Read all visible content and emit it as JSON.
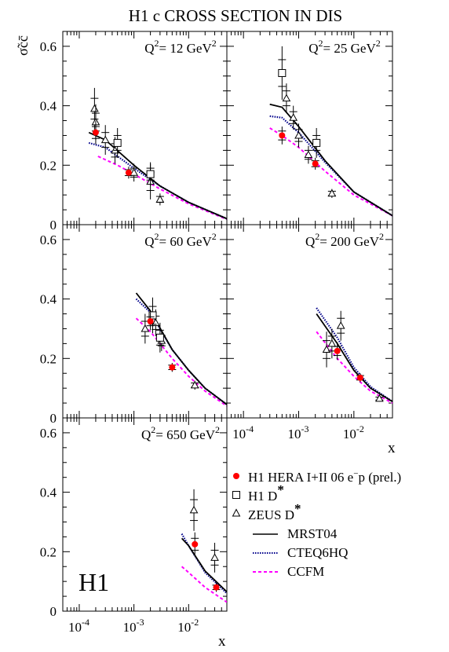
{
  "chart_data": {
    "type": "scatter",
    "title": "H1 c  CROSS SECTION IN DIS",
    "ylabel": "σ̃cc̄",
    "xlabel": "x",
    "xscale": "log",
    "xlim": [
      5e-05,
      0.05
    ],
    "ylim": [
      0,
      0.65
    ],
    "yticks": [
      0,
      0.2,
      0.4,
      0.6
    ],
    "xticks": [
      {
        "value": 0.0001,
        "base": "10",
        "exp": "-4"
      },
      {
        "value": 0.001,
        "base": "10",
        "exp": "-3"
      },
      {
        "value": 0.01,
        "base": "10",
        "exp": "-2"
      }
    ],
    "logo": "H1",
    "legend": {
      "h1_hera": "H1 HERA I+II 06 e",
      "h1_hera_sup": "−",
      "h1_hera_tail": "p (prel.)",
      "h1_dstar": "H1 D",
      "zeus_dstar": "ZEUS D",
      "star": "*",
      "mrst": "MRST04",
      "cteq": "CTEQ6HQ",
      "ccfm": "CCFM"
    },
    "colors": {
      "h1_hera": "#ff0000",
      "mrst": "#000000",
      "cteq": "#00008b",
      "ccfm": "#ff00ff"
    },
    "panels": [
      {
        "label_prefix": "Q",
        "label_sup": "2",
        "label_mid": "= 12 GeV",
        "label_sup2": "2",
        "h1_hera": [
          {
            "x": 0.0002,
            "y": 0.31,
            "err": 0.04
          },
          {
            "x": 0.0008,
            "y": 0.175,
            "err": 0.02
          }
        ],
        "h1_dstar": [
          {
            "x": 0.0005,
            "y": 0.275,
            "err": 0.05
          },
          {
            "x": 0.002,
            "y": 0.17,
            "err": 0.04
          }
        ],
        "zeus_dstar": [
          {
            "x": 0.00019,
            "y": 0.39,
            "err": 0.07
          },
          {
            "x": 0.0002,
            "y": 0.345,
            "err": 0.06
          },
          {
            "x": 0.0003,
            "y": 0.285,
            "err": 0.05
          },
          {
            "x": 0.00045,
            "y": 0.25,
            "err": 0.045
          },
          {
            "x": 0.001,
            "y": 0.175,
            "err": 0.03
          },
          {
            "x": 0.002,
            "y": 0.145,
            "err": 0.06
          },
          {
            "x": 0.003,
            "y": 0.085,
            "err": 0.02
          }
        ],
        "mrst": [
          [
            0.00015,
            0.31
          ],
          [
            0.0003,
            0.285
          ],
          [
            0.001,
            0.2
          ],
          [
            0.003,
            0.13
          ],
          [
            0.01,
            0.075
          ],
          [
            0.05,
            0.02
          ]
        ],
        "cteq": [
          [
            0.00015,
            0.275
          ],
          [
            0.0003,
            0.26
          ],
          [
            0.001,
            0.19
          ],
          [
            0.003,
            0.13
          ],
          [
            0.01,
            0.075
          ],
          [
            0.05,
            0.02
          ]
        ],
        "ccfm": [
          [
            0.00022,
            0.23
          ],
          [
            0.0005,
            0.2
          ],
          [
            0.001,
            0.17
          ],
          [
            0.003,
            0.12
          ],
          [
            0.01,
            0.07
          ],
          [
            0.05,
            0.018
          ]
        ]
      },
      {
        "label_prefix": "Q",
        "label_sup": "2",
        "label_mid": "= 25 GeV",
        "label_sup2": "2",
        "h1_hera": [
          {
            "x": 0.0005,
            "y": 0.3,
            "err": 0.03
          },
          {
            "x": 0.002,
            "y": 0.205,
            "err": 0.02
          }
        ],
        "h1_dstar": [
          {
            "x": 0.0005,
            "y": 0.51,
            "err": 0.09
          },
          {
            "x": 0.0021,
            "y": 0.275,
            "err": 0.05
          }
        ],
        "zeus_dstar": [
          {
            "x": 0.0006,
            "y": 0.425,
            "err": 0.05
          },
          {
            "x": 0.0008,
            "y": 0.36,
            "err": 0.04
          },
          {
            "x": 0.001,
            "y": 0.3,
            "err": 0.04
          },
          {
            "x": 0.0015,
            "y": 0.235,
            "err": 0.03
          },
          {
            "x": 0.004,
            "y": 0.105,
            "err": 0.015
          }
        ],
        "mrst": [
          [
            0.0003,
            0.405
          ],
          [
            0.0005,
            0.395
          ],
          [
            0.001,
            0.33
          ],
          [
            0.003,
            0.215
          ],
          [
            0.01,
            0.11
          ],
          [
            0.05,
            0.03
          ]
        ],
        "cteq": [
          [
            0.0003,
            0.365
          ],
          [
            0.0005,
            0.36
          ],
          [
            0.001,
            0.31
          ],
          [
            0.003,
            0.21
          ],
          [
            0.01,
            0.11
          ],
          [
            0.05,
            0.03
          ]
        ],
        "ccfm": [
          [
            0.0003,
            0.325
          ],
          [
            0.0005,
            0.3
          ],
          [
            0.001,
            0.26
          ],
          [
            0.003,
            0.18
          ],
          [
            0.01,
            0.1
          ],
          [
            0.05,
            0.03
          ]
        ]
      },
      {
        "label_prefix": "Q",
        "label_sup": "2",
        "label_mid": "= 60 GeV",
        "label_sup2": "2",
        "h1_hera": [
          {
            "x": 0.002,
            "y": 0.325,
            "err": 0.03
          },
          {
            "x": 0.005,
            "y": 0.17,
            "err": 0.015
          }
        ],
        "h1_dstar": [
          {
            "x": 0.0022,
            "y": 0.345,
            "err": 0.06
          },
          {
            "x": 0.003,
            "y": 0.27,
            "err": 0.05
          }
        ],
        "zeus_dstar": [
          {
            "x": 0.0016,
            "y": 0.3,
            "err": 0.05
          },
          {
            "x": 0.0025,
            "y": 0.32,
            "err": 0.045
          },
          {
            "x": 0.0032,
            "y": 0.26,
            "err": 0.035
          },
          {
            "x": 0.013,
            "y": 0.11,
            "err": 0.015
          }
        ],
        "mrst": [
          [
            0.0011,
            0.42
          ],
          [
            0.002,
            0.36
          ],
          [
            0.005,
            0.23
          ],
          [
            0.01,
            0.16
          ],
          [
            0.02,
            0.1
          ],
          [
            0.05,
            0.045
          ]
        ],
        "cteq": [
          [
            0.0011,
            0.4
          ],
          [
            0.002,
            0.355
          ],
          [
            0.005,
            0.23
          ],
          [
            0.01,
            0.16
          ],
          [
            0.02,
            0.1
          ],
          [
            0.05,
            0.045
          ]
        ],
        "ccfm": [
          [
            0.0011,
            0.335
          ],
          [
            0.002,
            0.29
          ],
          [
            0.005,
            0.2
          ],
          [
            0.01,
            0.14
          ],
          [
            0.02,
            0.09
          ],
          [
            0.05,
            0.04
          ]
        ]
      },
      {
        "label_prefix": "Q",
        "label_sup": "2",
        "label_mid": "= 200 GeV",
        "label_sup2": "2",
        "h1_hera": [
          {
            "x": 0.005,
            "y": 0.225,
            "err": 0.03
          },
          {
            "x": 0.013,
            "y": 0.135,
            "err": 0.015
          }
        ],
        "h1_dstar": [],
        "zeus_dstar": [
          {
            "x": 0.0032,
            "y": 0.23,
            "err": 0.06
          },
          {
            "x": 0.004,
            "y": 0.25,
            "err": 0.05
          },
          {
            "x": 0.0058,
            "y": 0.31,
            "err": 0.05
          },
          {
            "x": 0.029,
            "y": 0.065,
            "err": 0.01
          }
        ],
        "mrst": [
          [
            0.0021,
            0.35
          ],
          [
            0.005,
            0.25
          ],
          [
            0.01,
            0.16
          ],
          [
            0.02,
            0.1
          ],
          [
            0.05,
            0.055
          ]
        ],
        "cteq": [
          [
            0.0021,
            0.37
          ],
          [
            0.005,
            0.27
          ],
          [
            0.01,
            0.17
          ],
          [
            0.02,
            0.105
          ],
          [
            0.05,
            0.055
          ]
        ],
        "ccfm": [
          [
            0.0021,
            0.29
          ],
          [
            0.005,
            0.2
          ],
          [
            0.01,
            0.14
          ],
          [
            0.02,
            0.09
          ],
          [
            0.05,
            0.05
          ]
        ]
      },
      {
        "label_prefix": "Q",
        "label_sup": "2",
        "label_mid": "= 650 GeV",
        "label_sup2": "2",
        "h1_hera": [
          {
            "x": 0.013,
            "y": 0.225,
            "err": 0.04
          },
          {
            "x": 0.032,
            "y": 0.08,
            "err": 0.015
          }
        ],
        "h1_dstar": [],
        "zeus_dstar": [
          {
            "x": 0.0125,
            "y": 0.34,
            "err": 0.07
          },
          {
            "x": 0.03,
            "y": 0.18,
            "err": 0.05
          }
        ],
        "mrst": [
          [
            0.0075,
            0.245
          ],
          [
            0.01,
            0.22
          ],
          [
            0.02,
            0.135
          ],
          [
            0.05,
            0.065
          ]
        ],
        "cteq": [
          [
            0.0075,
            0.26
          ],
          [
            0.01,
            0.22
          ],
          [
            0.02,
            0.13
          ],
          [
            0.05,
            0.06
          ]
        ],
        "ccfm": [
          [
            0.0075,
            0.15
          ],
          [
            0.01,
            0.13
          ],
          [
            0.02,
            0.08
          ],
          [
            0.05,
            0.03
          ]
        ]
      }
    ]
  }
}
